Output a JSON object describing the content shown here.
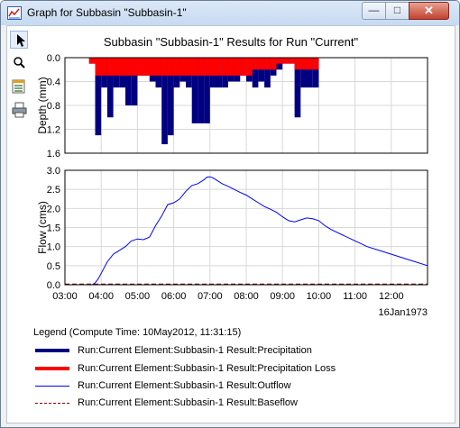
{
  "window": {
    "title": "Graph for Subbasin \"Subbasin-1\"",
    "minimize_glyph": "—",
    "maximize_glyph": "□",
    "close_glyph": "✕"
  },
  "toolbar": {
    "tools": [
      {
        "icon": "pointer-arrow-icon",
        "active": true
      },
      {
        "icon": "zoom-magnifier-icon",
        "active": false
      },
      {
        "icon": "table-properties-icon",
        "active": false
      },
      {
        "icon": "printer-icon",
        "active": false
      }
    ]
  },
  "chart_data": [
    {
      "type": "bar",
      "title": "Subbasin \"Subbasin-1\" Results for Run \"Current\"",
      "ylabel": "Depth (mm)",
      "ylim": [
        0,
        1.6
      ],
      "y_inverted": true,
      "yticks": [
        "0.0",
        "0.4",
        "0.8",
        "1.2",
        "1.6"
      ],
      "xlim": [
        180,
        780
      ],
      "grid": true,
      "bar_width_minutes": 10,
      "x": [
        230,
        240,
        250,
        260,
        270,
        280,
        290,
        300,
        310,
        320,
        330,
        340,
        350,
        360,
        370,
        380,
        390,
        400,
        410,
        420,
        430,
        440,
        450,
        460,
        470,
        480,
        490,
        500,
        510,
        520,
        530,
        540,
        550,
        560,
        570,
        580,
        590,
        600
      ],
      "series": [
        {
          "name": "Run:Current Element:Subbasin-1 Result:Precipitation",
          "color": "#000080",
          "values": [
            0.1,
            1.3,
            0.5,
            1.0,
            0.5,
            0.5,
            0.8,
            0.8,
            0.3,
            0.3,
            0.4,
            0.5,
            1.45,
            1.3,
            0.5,
            0.4,
            0.5,
            1.1,
            1.1,
            1.1,
            0.5,
            0.5,
            0.5,
            0.4,
            0.4,
            0.3,
            0.4,
            0.5,
            0.4,
            0.5,
            0.3,
            0.2,
            0.1,
            0.1,
            1.0,
            0.5,
            0.5,
            0.5
          ]
        },
        {
          "name": "Run:Current Element:Subbasin-1 Result:Precipitation Loss",
          "color": "#ff0000",
          "values": [
            0.1,
            0.3,
            0.3,
            0.3,
            0.3,
            0.3,
            0.3,
            0.3,
            0.3,
            0.3,
            0.3,
            0.3,
            0.3,
            0.3,
            0.3,
            0.3,
            0.3,
            0.3,
            0.3,
            0.3,
            0.3,
            0.3,
            0.3,
            0.3,
            0.3,
            0.3,
            0.3,
            0.2,
            0.2,
            0.2,
            0.2,
            0.1,
            0.1,
            0.1,
            0.2,
            0.2,
            0.2,
            0.2
          ]
        }
      ]
    },
    {
      "type": "line",
      "ylabel": "Flow (cms)",
      "ylim": [
        0,
        3.0
      ],
      "yticks": [
        "0.0",
        "0.5",
        "1.0",
        "1.5",
        "2.0",
        "2.5",
        "3.0"
      ],
      "xlim": [
        180,
        780
      ],
      "xticks": [
        "03:00",
        "04:00",
        "05:00",
        "06:00",
        "07:00",
        "08:00",
        "09:00",
        "10:00",
        "11:00",
        "12:00"
      ],
      "xtick_minutes": [
        180,
        240,
        300,
        360,
        420,
        480,
        540,
        600,
        660,
        720
      ],
      "date_label": "16Jan1973",
      "grid": true,
      "series": [
        {
          "name": "Run:Current Element:Subbasin-1 Result:Outflow",
          "color": "#0000ff",
          "style": "solid",
          "x": [
            180,
            225,
            230,
            235,
            240,
            250,
            260,
            270,
            280,
            290,
            300,
            310,
            320,
            330,
            340,
            350,
            360,
            370,
            380,
            390,
            400,
            410,
            415,
            420,
            425,
            430,
            440,
            450,
            460,
            470,
            480,
            490,
            500,
            510,
            520,
            530,
            540,
            550,
            560,
            570,
            580,
            590,
            600,
            610,
            620,
            640,
            660,
            680,
            700,
            720,
            740,
            760,
            780
          ],
          "values": [
            0,
            0,
            0.05,
            0.15,
            0.3,
            0.6,
            0.8,
            0.9,
            1.0,
            1.15,
            1.2,
            1.18,
            1.25,
            1.55,
            1.8,
            2.1,
            2.15,
            2.25,
            2.45,
            2.6,
            2.65,
            2.75,
            2.82,
            2.83,
            2.8,
            2.75,
            2.65,
            2.58,
            2.5,
            2.42,
            2.35,
            2.25,
            2.15,
            2.05,
            1.98,
            1.9,
            1.78,
            1.68,
            1.65,
            1.7,
            1.75,
            1.73,
            1.68,
            1.55,
            1.45,
            1.3,
            1.15,
            1.0,
            0.9,
            0.8,
            0.7,
            0.6,
            0.5
          ]
        },
        {
          "name": "Run:Current Element:Subbasin-1 Result:Baseflow",
          "color": "#8b0000",
          "style": "dashed",
          "x": [
            180,
            780
          ],
          "values": [
            0.02,
            0.02
          ]
        }
      ]
    }
  ],
  "legend": {
    "title": "Legend (Compute Time: 10May2012, 11:31:15)",
    "entries": [
      {
        "label": "Run:Current Element:Subbasin-1 Result:Precipitation",
        "color": "#000080",
        "style": "thick"
      },
      {
        "label": "Run:Current Element:Subbasin-1 Result:Precipitation Loss",
        "color": "#ff0000",
        "style": "thick"
      },
      {
        "label": "Run:Current Element:Subbasin-1 Result:Outflow",
        "color": "#0000ff",
        "style": "thin"
      },
      {
        "label": "Run:Current Element:Subbasin-1 Result:Baseflow",
        "color": "#8b0000",
        "style": "dashed"
      }
    ]
  }
}
